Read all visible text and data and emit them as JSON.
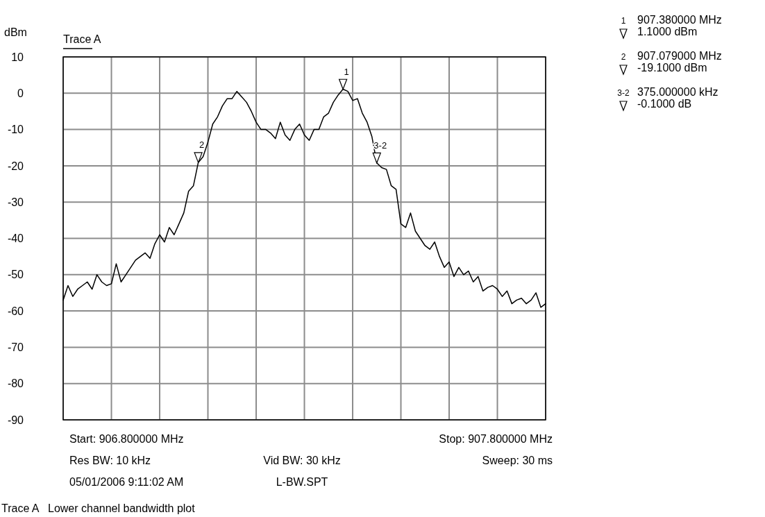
{
  "chart_data": {
    "type": "line",
    "ylabel": "dBm",
    "legend": "top left",
    "grid": true,
    "tick_labels": "y",
    "marker": "none",
    "line_style": "solid",
    "categories": [
      null,
      null,
      null,
      null,
      null,
      null,
      null,
      null,
      null,
      null,
      null,
      null,
      null,
      null,
      null,
      null,
      null,
      null,
      null,
      null,
      null,
      null,
      null,
      null,
      null,
      null,
      null,
      null,
      null,
      null,
      null,
      null,
      null,
      null,
      null,
      null,
      null,
      null,
      null,
      null,
      null,
      null,
      null,
      null,
      null,
      null,
      null,
      null,
      null,
      null,
      null,
      null,
      null,
      null,
      null,
      null,
      null,
      null,
      null,
      null,
      null,
      null,
      null,
      null,
      null,
      null,
      null,
      null,
      null,
      null,
      null,
      null,
      null,
      null,
      null,
      null,
      null,
      null,
      null,
      null,
      null,
      null,
      null,
      null,
      null,
      null,
      null,
      null,
      null,
      null,
      null,
      null,
      null,
      null,
      null,
      null,
      null,
      null,
      null,
      null,
      null
    ],
    "ylim": [
      -90,
      10
    ],
    "yticks": [
      10,
      0,
      -10,
      -20,
      -30,
      -40,
      -50,
      -60,
      -70,
      -80,
      -90
    ],
    "series": [
      {
        "name": "Trace A",
        "color": "#000000",
        "values": [
          -57,
          -53,
          -56,
          -54,
          -53,
          -52,
          -54,
          -50,
          -52,
          -53,
          -52.5,
          -47,
          -52,
          -50,
          -48,
          -46,
          -45,
          -44,
          -45.5,
          -41.5,
          -39,
          -41,
          -37,
          -39,
          -36,
          -33,
          -27,
          -25.5,
          -19.1,
          -17.5,
          -13.5,
          -8.5,
          -6.5,
          -3.5,
          -1.5,
          -1.5,
          0.5,
          -1,
          -2.5,
          -5,
          -8,
          -10,
          -10,
          -11,
          -12.5,
          -8,
          -11.5,
          -13,
          -10,
          -8.5,
          -11.5,
          -13,
          -10,
          -10,
          -6.5,
          -5.5,
          -2.5,
          -0.5,
          1.1,
          0.5,
          -2,
          -1.5,
          -5.5,
          -8,
          -12,
          -19.2,
          -20.5,
          -21,
          -25.5,
          -26.5,
          -36,
          -37,
          -33,
          -38,
          -40,
          -42,
          -43,
          -41,
          -45,
          -48,
          -46.5,
          -50.5,
          -48,
          -50,
          -49,
          -52,
          -50.5,
          -54.5,
          -53.5,
          -53,
          -54,
          -56,
          -54.5,
          -58,
          -57,
          -56.5,
          -58,
          -57,
          -55,
          -59,
          -58
        ]
      }
    ],
    "annotations": [
      {
        "text": "1",
        "y": 1.1
      },
      {
        "text": "2",
        "y": -19.1
      },
      {
        "text": "3-2",
        "y": -19.2
      },
      "907.380000 MHz",
      "1.1000 dBm",
      "907.079000 MHz",
      "-19.1000 dBm",
      "375.000000 kHz",
      "-0.1000 dB",
      "Start: 906.800000 MHz",
      "Stop: 907.800000 MHz",
      "Res BW: 10 kHz",
      "Vid BW: 30 kHz",
      "Sweep: 30 ms",
      "05/01/2006 9:11:02 AM",
      "L-BW.SPT",
      "Trace A   Lower channel bandwidth plot"
    ]
  }
}
